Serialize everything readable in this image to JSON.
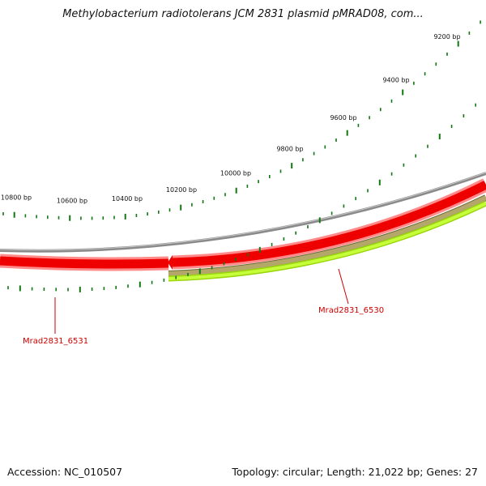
{
  "title": "Methylobacterium radiotolerans JCM 2831 plasmid pMRAD08, com...",
  "footer": {
    "accession": "Accession: NC_010507",
    "summary": "Topology: circular; Length: 21,022 bp; Genes: 27"
  },
  "scale": {
    "labels": [
      "10800 bp",
      "10600 bp",
      "10400 bp",
      "10200 bp",
      "10000 bp",
      "9800 bp",
      "9600 bp",
      "9400 bp",
      "9200 bp"
    ]
  },
  "genes": [
    {
      "name": "Mrad2831_6531",
      "strand": "reverse",
      "color": "#ee0000"
    },
    {
      "name": "Mrad2831_6530",
      "strand": "reverse",
      "color": "#ee0000"
    }
  ],
  "colors": {
    "backbone": "#8a8a8a",
    "gene": "#ee0000",
    "gene_light": "#ff8a8a",
    "olive_track": "#b3a86a",
    "green_track": "#aef21a",
    "ticks": "#117711",
    "label_line": "#cc0000"
  }
}
